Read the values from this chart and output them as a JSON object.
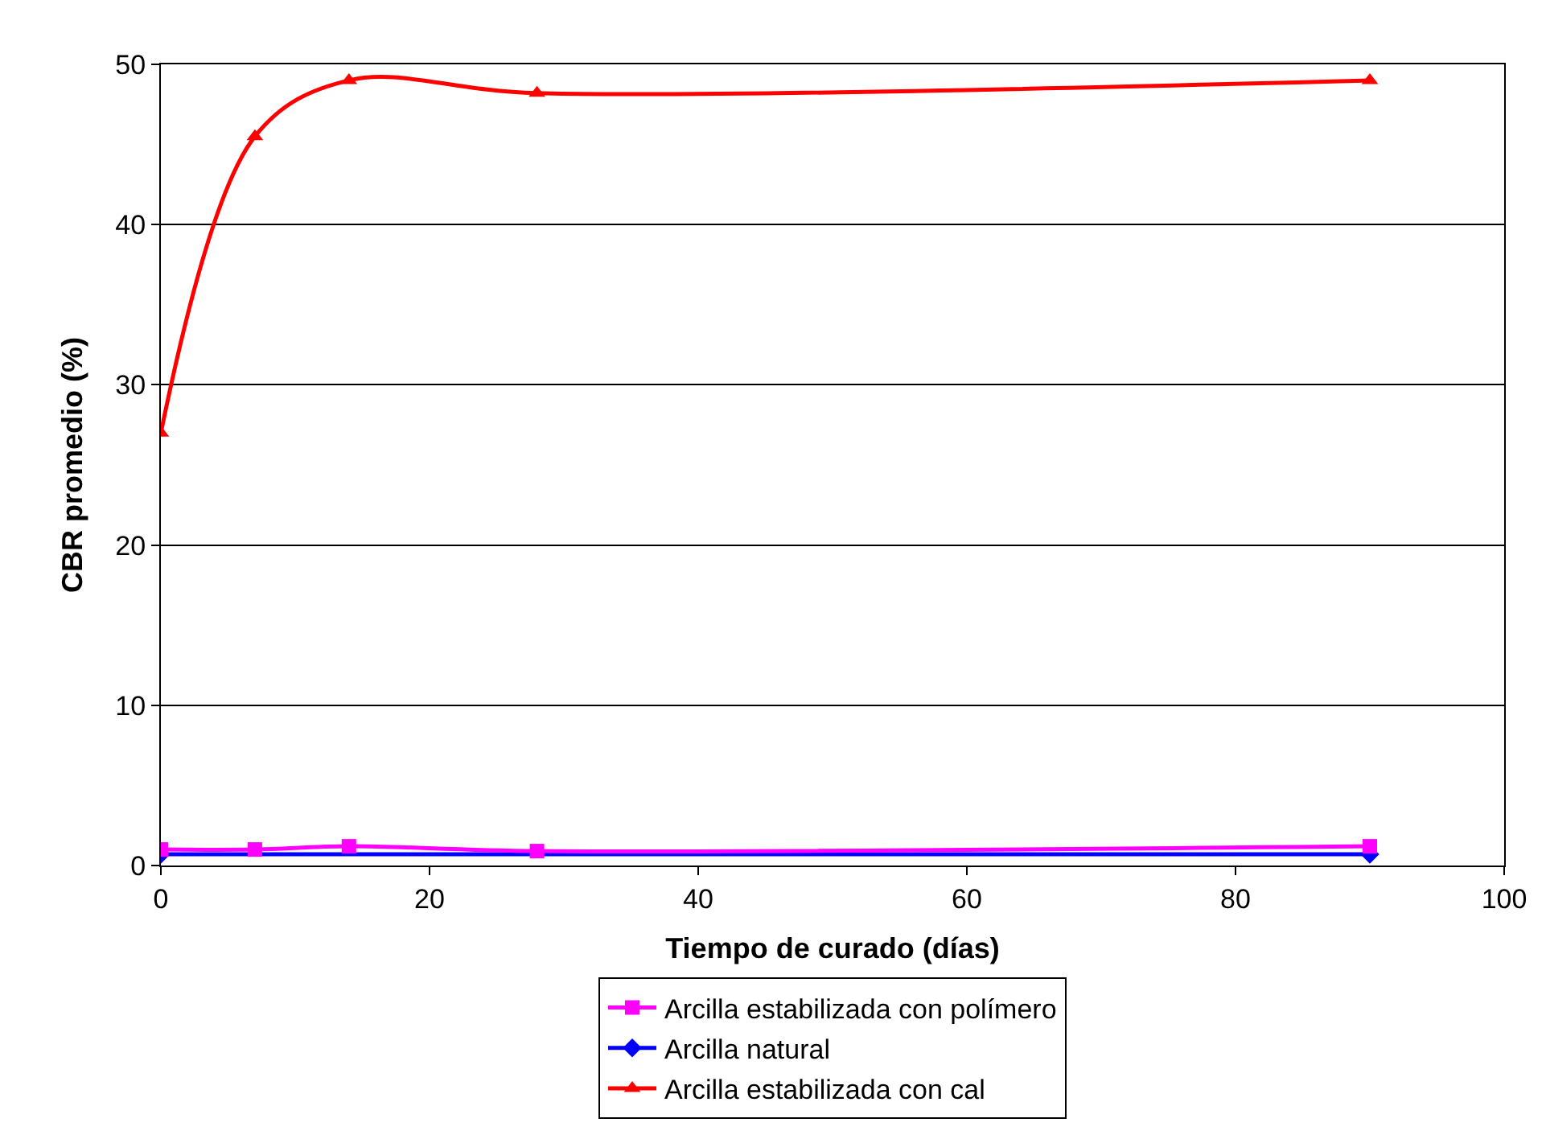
{
  "chart_data": {
    "type": "line",
    "xlabel": "Tiempo de curado (días)",
    "ylabel": "CBR promedio (%)",
    "x": [
      0,
      7,
      14,
      28,
      90
    ],
    "series": [
      {
        "name": "Arcilla estabilizada con polímero",
        "color": "#ff00ff",
        "marker": "square",
        "values": [
          1.0,
          1.0,
          1.2,
          0.9,
          1.2
        ]
      },
      {
        "name": "Arcilla natural",
        "color": "#0000ff",
        "marker": "diamond",
        "x": [
          0,
          90
        ],
        "values": [
          0.7,
          0.7
        ]
      },
      {
        "name": "Arcilla estabilizada con cal",
        "color": "#ff0000",
        "marker": "triangle",
        "values": [
          27,
          45.5,
          49,
          48.2,
          49
        ]
      }
    ],
    "xlim": [
      0,
      100
    ],
    "xticks": [
      0,
      20,
      40,
      60,
      80,
      100
    ],
    "ylim": [
      0,
      50
    ],
    "yticks": [
      0,
      10,
      20,
      30,
      40,
      50
    ],
    "grid": "y",
    "legend": "bottom",
    "line_style": "solid"
  }
}
